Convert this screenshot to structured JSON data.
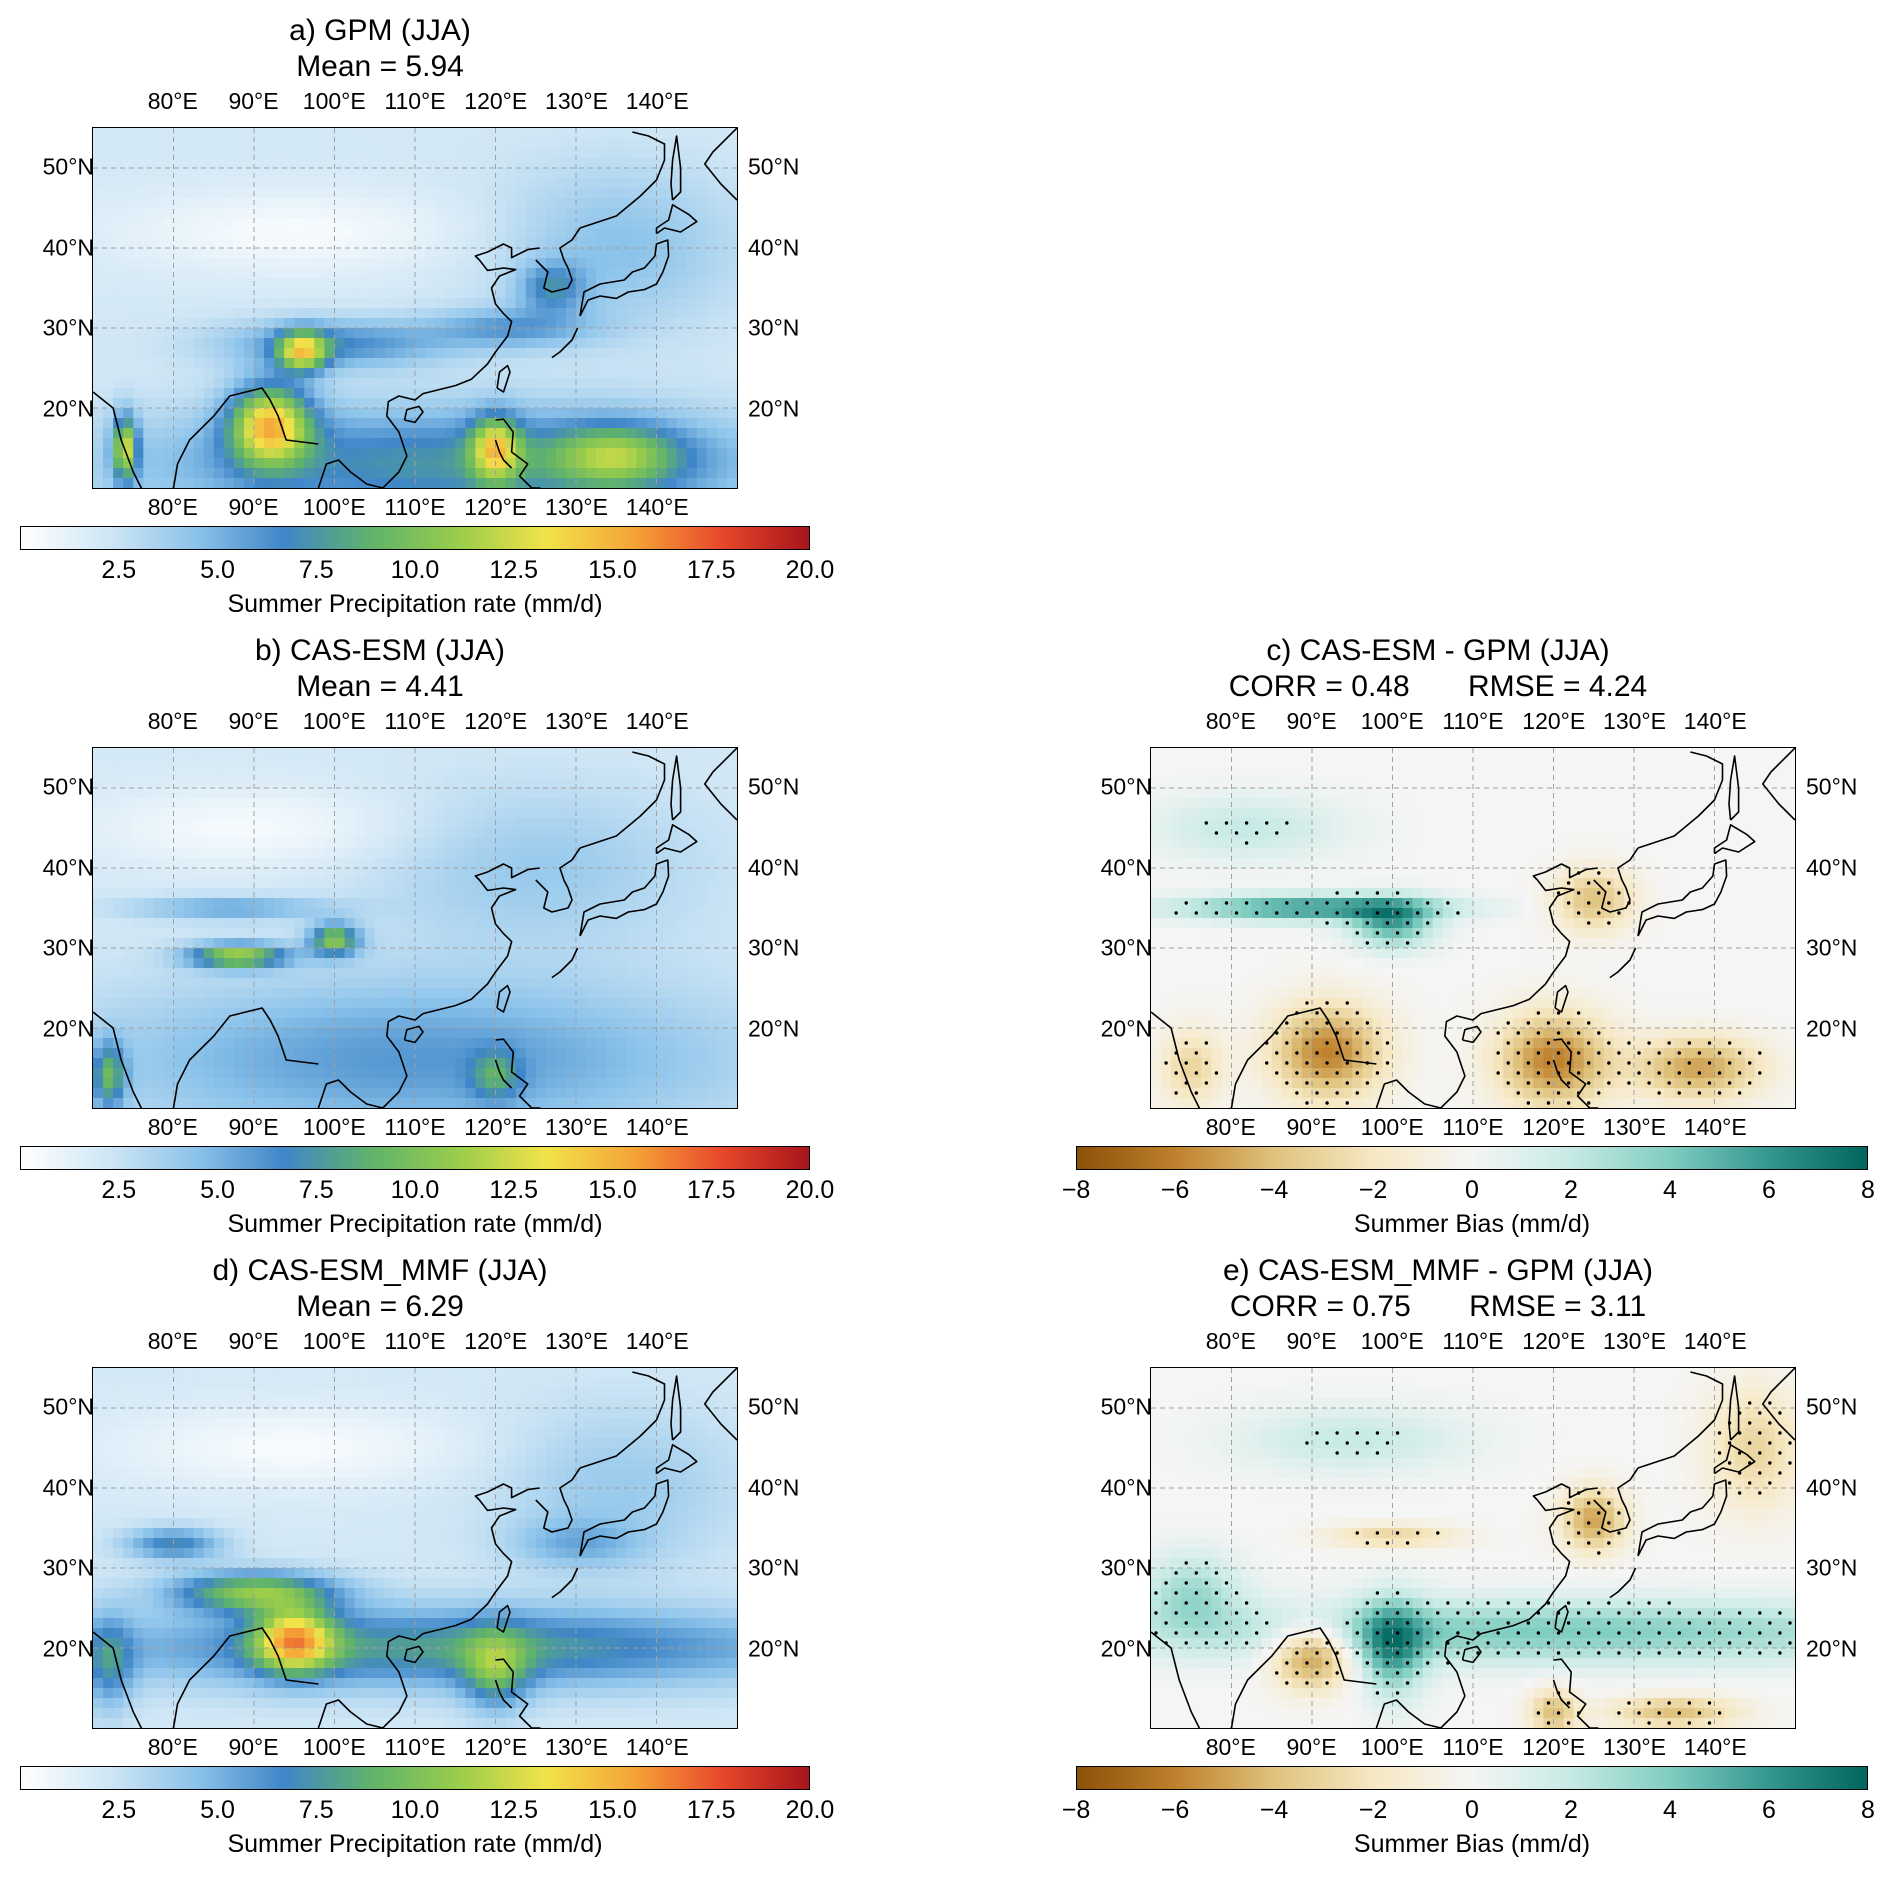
{
  "figure": {
    "lon_ticks": [
      "80°E",
      "90°E",
      "100°E",
      "110°E",
      "120°E",
      "130°E",
      "140°E"
    ],
    "lat_ticks": [
      "50°N",
      "40°N",
      "30°N",
      "20°N"
    ],
    "lon_range": [
      70,
      150
    ],
    "lat_range": [
      10,
      55
    ]
  },
  "panels": [
    {
      "id": "a",
      "title": "a) GPM (JJA)",
      "subtitle": "Mean = 5.94",
      "kind": "precip",
      "colorbar": {
        "ticks": [
          "2.5",
          "5.0",
          "7.5",
          "10.0",
          "12.5",
          "15.0",
          "17.5",
          "20.0"
        ],
        "range": [
          0,
          20
        ],
        "label": "Summer Precipitation rate (mm/d)"
      }
    },
    {
      "id": "b",
      "title": "b) CAS-ESM (JJA)",
      "subtitle": "Mean = 4.41",
      "kind": "precip",
      "colorbar": {
        "ticks": [
          "2.5",
          "5.0",
          "7.5",
          "10.0",
          "12.5",
          "15.0",
          "17.5",
          "20.0"
        ],
        "range": [
          0,
          20
        ],
        "label": "Summer Precipitation rate (mm/d)"
      }
    },
    {
      "id": "c",
      "title": "c) CAS-ESM - GPM (JJA)",
      "subtitle": "CORR = 0.48       RMSE = 4.24",
      "kind": "bias",
      "colorbar": {
        "ticks": [
          "−8",
          "−6",
          "−4",
          "−2",
          "0",
          "2",
          "4",
          "6",
          "8"
        ],
        "range": [
          -8,
          8
        ],
        "label": "Summer Bias (mm/d)"
      }
    },
    {
      "id": "d",
      "title": "d) CAS-ESM_MMF (JJA)",
      "subtitle": "Mean = 6.29",
      "kind": "precip",
      "colorbar": {
        "ticks": [
          "2.5",
          "5.0",
          "7.5",
          "10.0",
          "12.5",
          "15.0",
          "17.5",
          "20.0"
        ],
        "range": [
          0,
          20
        ],
        "label": "Summer Precipitation rate (mm/d)"
      }
    },
    {
      "id": "e",
      "title": "e) CAS-ESM_MMF - GPM (JJA)",
      "subtitle": "CORR = 0.75       RMSE = 3.11",
      "kind": "bias",
      "colorbar": {
        "ticks": [
          "−8",
          "−6",
          "−4",
          "−2",
          "0",
          "2",
          "4",
          "6",
          "8"
        ],
        "range": [
          -8,
          8
        ],
        "label": "Summer Bias (mm/d)"
      }
    }
  ],
  "colors": {
    "precip_scale": [
      "#ffffff",
      "#cfe6f5",
      "#8cc3ea",
      "#3f86c8",
      "#5fb36a",
      "#9acd4a",
      "#f2e34a",
      "#f5a338",
      "#e8482a",
      "#a5151c"
    ],
    "bias_scale": [
      "#8c5109",
      "#bf812d",
      "#dfc27d",
      "#f6e8c3",
      "#f5f5f5",
      "#c7eae5",
      "#80cdc1",
      "#35978f",
      "#01665e"
    ],
    "grid": "#a0a0a0",
    "coast": "#000000"
  }
}
